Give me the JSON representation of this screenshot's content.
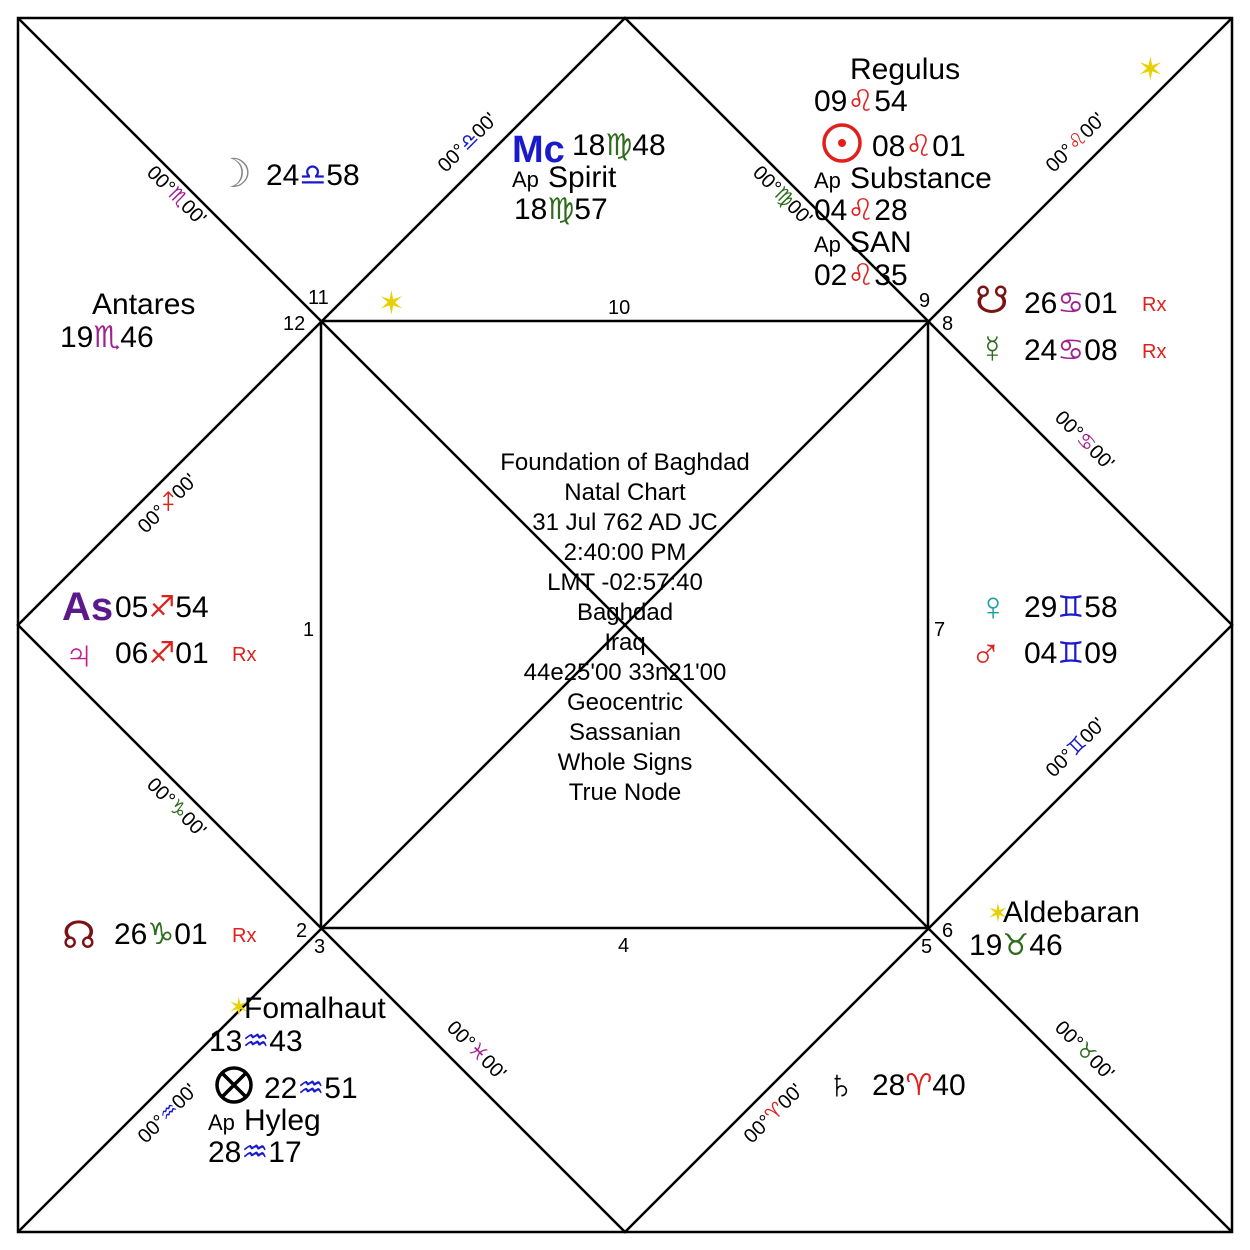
{
  "center_info": {
    "line1": "Foundation of Baghdad",
    "line2": "Natal Chart",
    "line3": "31 Jul 762 AD JC",
    "line4": "2:40:00 PM",
    "line5": "LMT -02:57:40",
    "line6": "Baghdad",
    "line7": "Iraq",
    "line8": "44e25'00 33n21'00",
    "line9": "Geocentric",
    "line10": "Sassanian",
    "line11": "Whole Signs",
    "line12": "True Node"
  },
  "house_numbers": [
    "1",
    "2",
    "3",
    "4",
    "5",
    "6",
    "7",
    "8",
    "9",
    "10",
    "11",
    "12"
  ],
  "cusps": {
    "libra": {
      "deg": "00°",
      "min": "00'",
      "glyph": "♎",
      "color": "#1a1acc"
    },
    "virgo": {
      "deg": "00°",
      "min": "00'",
      "glyph": "♍",
      "color": "#2e6b1e"
    },
    "leo": {
      "deg": "00°",
      "min": "00'",
      "glyph": "♌",
      "color": "#e0201c"
    },
    "cancer": {
      "deg": "00°",
      "min": "00'",
      "glyph": "♋",
      "color": "#a0228f"
    },
    "gemini": {
      "deg": "00°",
      "min": "00'",
      "glyph": "♊",
      "color": "#1a1acc"
    },
    "taurus": {
      "deg": "00°",
      "min": "00'",
      "glyph": "♉",
      "color": "#2e6b1e"
    },
    "aries": {
      "deg": "00°",
      "min": "00'",
      "glyph": "♈",
      "color": "#e0201c"
    },
    "pisces": {
      "deg": "00°",
      "min": "00'",
      "glyph": "♓",
      "color": "#a0228f"
    },
    "aquarius": {
      "deg": "00°",
      "min": "00'",
      "glyph": "♒",
      "color": "#1a1acc"
    },
    "capricorn": {
      "deg": "00°",
      "min": "00'",
      "glyph": "♑",
      "color": "#2e6b1e"
    },
    "sagittarius": {
      "deg": "00°",
      "min": "00'",
      "glyph": "♐",
      "color": "#e0201c"
    },
    "scorpio": {
      "deg": "00°",
      "min": "00'",
      "glyph": "♏",
      "color": "#a0228f"
    }
  },
  "planets": {
    "moon": {
      "glyph": "☽",
      "deg": "24",
      "sign": "♎",
      "min": "58",
      "color": "#888888",
      "sign_color": "#1a1acc"
    },
    "mc": {
      "glyph": "Mc",
      "deg": "18",
      "sign": "♍",
      "min": "48",
      "color": "#1a1acc",
      "sign_color": "#2e6b1e"
    },
    "spirit": {
      "label": "Spirit",
      "prefix": "Ap",
      "deg": "18",
      "sign": "♍",
      "min": "57",
      "sign_color": "#2e6b1e"
    },
    "regulus": {
      "label": "Regulus",
      "deg": "09",
      "sign": "♌",
      "min": "54",
      "sign_color": "#e0201c"
    },
    "sun": {
      "glyph": "☉",
      "deg": "08",
      "sign": "♌",
      "min": "01",
      "color": "#e0201c",
      "sign_color": "#e0201c"
    },
    "substance": {
      "label": "Substance",
      "prefix": "Ap",
      "deg": "04",
      "sign": "♌",
      "min": "28",
      "sign_color": "#e0201c"
    },
    "san": {
      "label": "SAN",
      "prefix": "Ap",
      "deg": "02",
      "sign": "♌",
      "min": "35",
      "sign_color": "#e0201c"
    },
    "south_node": {
      "glyph": "☋",
      "deg": "26",
      "sign": "♋",
      "min": "01",
      "retro": "Rx",
      "color": "#7a1414",
      "sign_color": "#a0228f"
    },
    "mercury": {
      "glyph": "☿",
      "deg": "24",
      "sign": "♋",
      "min": "08",
      "retro": "Rx",
      "color": "#2e6b1e",
      "sign_color": "#a0228f"
    },
    "antares": {
      "label": "Antares",
      "deg": "19",
      "sign": "♏",
      "min": "46",
      "sign_color": "#a0228f"
    },
    "asc": {
      "glyph": "As",
      "deg": "05",
      "sign": "♐",
      "min": "54",
      "color": "#5a1a8a",
      "sign_color": "#e0201c"
    },
    "jupiter": {
      "glyph": "♃",
      "deg": "06",
      "sign": "♐",
      "min": "01",
      "retro": "Rx",
      "color": "#c0208a",
      "sign_color": "#e0201c"
    },
    "venus": {
      "glyph": "♀",
      "deg": "29",
      "sign": "♊",
      "min": "58",
      "color": "#1aa0a0",
      "sign_color": "#1a1acc"
    },
    "mars": {
      "glyph": "♂",
      "deg": "04",
      "sign": "♊",
      "min": "09",
      "color": "#e0201c",
      "sign_color": "#1a1acc"
    },
    "north_node": {
      "glyph": "☊",
      "deg": "26",
      "sign": "♑",
      "min": "01",
      "retro": "Rx",
      "color": "#7a1414",
      "sign_color": "#2e6b1e"
    },
    "aldebaran": {
      "label": "Aldebaran",
      "deg": "19",
      "sign": "♉",
      "min": "46",
      "sign_color": "#2e6b1e"
    },
    "fomalhaut": {
      "label": "Fomalhaut",
      "deg": "13",
      "sign": "♒",
      "min": "43",
      "sign_color": "#1a1acc"
    },
    "fortune": {
      "glyph": "⊗",
      "deg": "22",
      "sign": "♒",
      "min": "51",
      "color": "#000000",
      "sign_color": "#1a1acc"
    },
    "hyleg": {
      "label": "Hyleg",
      "prefix": "Ap",
      "deg": "28",
      "sign": "♒",
      "min": "17",
      "sign_color": "#1a1acc"
    },
    "saturn": {
      "glyph": "♄",
      "deg": "28",
      "sign": "♈",
      "min": "40",
      "color": "#000000",
      "sign_color": "#e0201c"
    }
  },
  "colors": {
    "star": "#e8d000",
    "retro": "#e0201c",
    "line": "#000000"
  }
}
